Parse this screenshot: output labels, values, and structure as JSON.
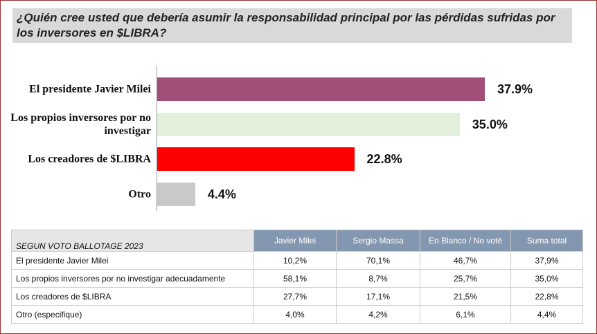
{
  "chart_data": {
    "type": "bar",
    "orientation": "horizontal",
    "title": "¿Quién cree usted que debería asumir la responsabilidad principal por las pérdidas sufridas por los inversores en $LIBRA?",
    "categories": [
      "El presidente Javier Milei",
      "Los propios inversores por no investigar",
      "Los creadores de $LIBRA",
      "Otro"
    ],
    "values": [
      37.9,
      35.0,
      22.8,
      4.4
    ],
    "value_labels": [
      "37.9%",
      "35.0%",
      "22.8%",
      "4.4%"
    ],
    "colors": [
      "#a34e78",
      "#e2efda",
      "#ff0000",
      "#c9c9c9"
    ]
  },
  "table": {
    "header": [
      "SEGUN VOTO BALLOTAGE 2023",
      "Javier Milei",
      "Sergio Massa",
      "En Blanco / No voté",
      "Suma total"
    ],
    "rows": [
      [
        "El presidente Javier Milei",
        "10,2%",
        "70,1%",
        "46,7%",
        "37,9%"
      ],
      [
        "Los propios inversores por no investigar adecuadamente",
        "58,1%",
        "8,7%",
        "25,7%",
        "35,0%"
      ],
      [
        "Los creadores de $LIBRA",
        "27,7%",
        "17,1%",
        "21,5%",
        "22,8%"
      ],
      [
        "Otro (especifique)",
        "4,0%",
        "4,2%",
        "6,1%",
        "4,4%"
      ]
    ]
  }
}
